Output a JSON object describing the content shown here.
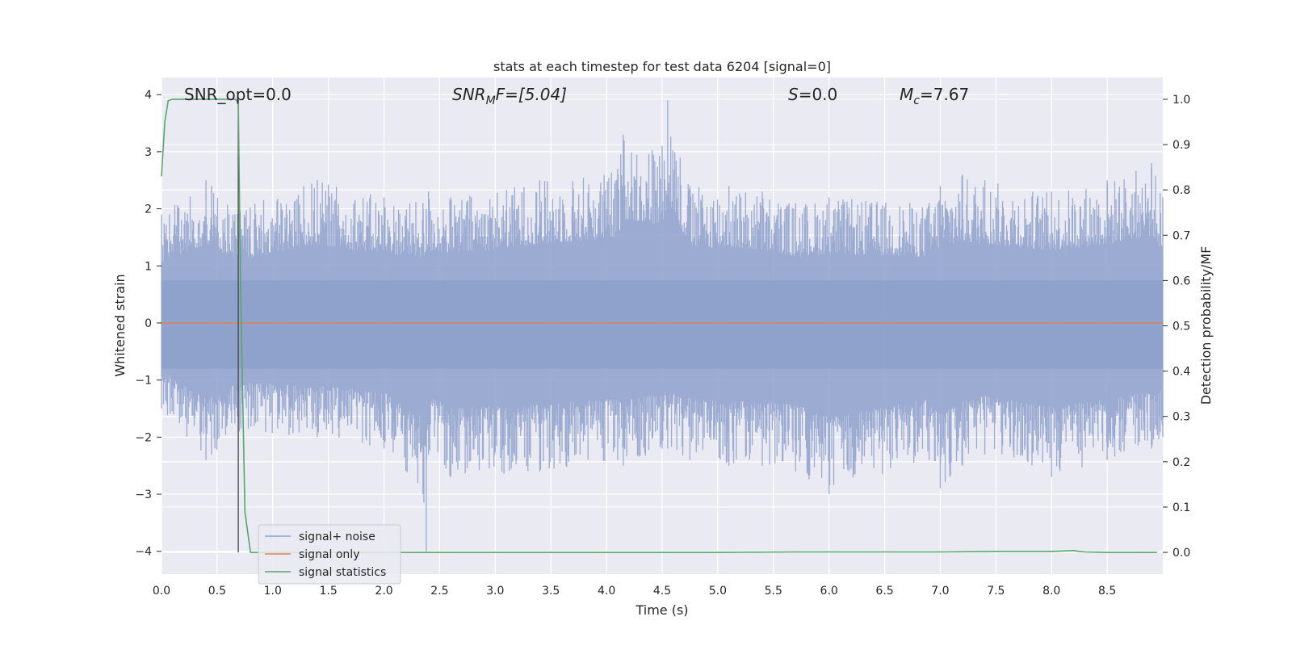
{
  "chart_data": {
    "type": "line",
    "title": "stats at each timestep for test data 6204 [signal=0]",
    "xlabel": "Time (s)",
    "ylabel": "Whitened strain",
    "y2label": "Detection probability/MF",
    "xlim": [
      0.0,
      9.0
    ],
    "ylim": [
      -4.4,
      4.3
    ],
    "y2lim": [
      -0.048,
      1.048
    ],
    "x_ticks": [
      "0.0",
      "0.5",
      "1.0",
      "1.5",
      "2.0",
      "2.5",
      "3.0",
      "3.5",
      "4.0",
      "4.5",
      "5.0",
      "5.5",
      "6.0",
      "6.5",
      "7.0",
      "7.5",
      "8.0",
      "8.5"
    ],
    "y_ticks": [
      "4",
      "3",
      "2",
      "1",
      "0",
      "−1",
      "−2",
      "−3",
      "−4"
    ],
    "y2_ticks": [
      "1.0",
      "0.9",
      "0.8",
      "0.7",
      "0.6",
      "0.5",
      "0.4",
      "0.3",
      "0.2",
      "0.1",
      "0.0"
    ],
    "grid": true,
    "legend_position": "lower-left",
    "annotations": {
      "snr_opt": "SNR_opt=0.0",
      "snr_mf_main": "SNR",
      "snr_mf_sub": "M",
      "snr_mf_rest": "F=[5.04]",
      "s_main": "S",
      "s_rest": "=0.0",
      "mc_main": "M",
      "mc_sub": "c",
      "mc_rest": "=7.67"
    },
    "marker_line_x": 0.69,
    "series": [
      {
        "name": "signal+ noise",
        "color": "#8da0cb",
        "description_values": "dense whitened noise roughly between -2.5 and 2.5 with peaks",
        "envelope_x": [
          0.0,
          0.4,
          0.45,
          0.7,
          1.4,
          2.0,
          2.35,
          2.38,
          2.4,
          2.6,
          3.4,
          4.1,
          4.15,
          4.5,
          4.55,
          4.75,
          5.1,
          5.4,
          5.7,
          6.0,
          6.9,
          7.0,
          7.2,
          7.4,
          8.0,
          8.5,
          8.9,
          9.0
        ],
        "envelope_max": [
          1.9,
          2.5,
          2.4,
          2.0,
          2.5,
          2.2,
          2.1,
          2.0,
          2.3,
          2.2,
          2.5,
          2.7,
          3.3,
          3.1,
          3.9,
          2.4,
          2.4,
          2.3,
          2.1,
          2.2,
          2.1,
          2.4,
          2.6,
          2.5,
          2.3,
          2.5,
          2.8,
          2.2
        ],
        "envelope_min": [
          -1.5,
          -2.4,
          -2.3,
          -1.9,
          -2.0,
          -2.2,
          -3.0,
          -4.0,
          -2.3,
          -2.7,
          -2.6,
          -2.4,
          -2.5,
          -2.2,
          -2.2,
          -2.4,
          -2.5,
          -2.5,
          -2.6,
          -3.0,
          -2.4,
          -2.9,
          -2.5,
          -2.3,
          -2.7,
          -2.4,
          -2.2,
          -2.0
        ]
      },
      {
        "name": "signal only",
        "color": "#dd8452",
        "x": [
          0.0,
          9.0
        ],
        "y": [
          0.0,
          0.0
        ]
      },
      {
        "name": "signal statistics",
        "color": "#55a868",
        "axis": "right",
        "x": [
          0.0,
          0.03,
          0.06,
          0.1,
          0.2,
          0.4,
          0.6,
          0.66,
          0.69,
          0.71,
          0.75,
          0.8,
          0.9,
          1.5,
          3.0,
          5.0,
          5.7,
          6.0,
          7.0,
          7.5,
          8.0,
          8.2,
          8.25,
          8.3,
          8.5,
          8.95
        ],
        "y": [
          0.83,
          0.95,
          0.997,
          1.0,
          1.0,
          1.0,
          1.0,
          1.0,
          0.995,
          0.6,
          0.09,
          0.0,
          0.0,
          0.0,
          0.0,
          0.0,
          0.001,
          0.001,
          0.001,
          0.002,
          0.002,
          0.004,
          0.002,
          0.001,
          0.0,
          0.0
        ]
      }
    ]
  }
}
